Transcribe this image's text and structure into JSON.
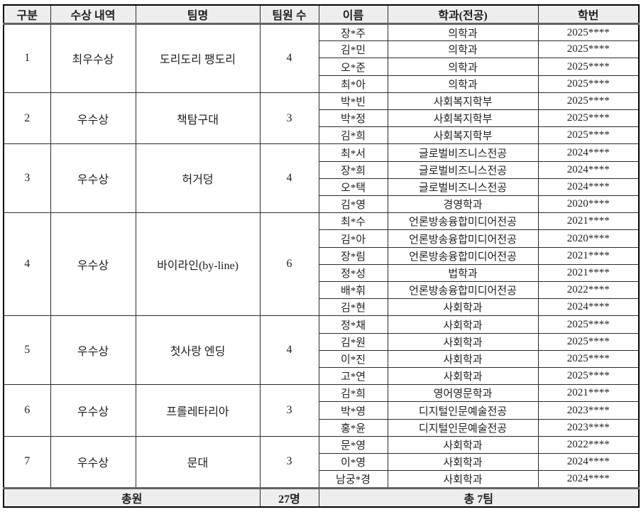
{
  "table": {
    "headers": [
      {
        "label": "구분"
      },
      {
        "label": "수상 내역"
      },
      {
        "label": "팀명"
      },
      {
        "label": "팀원 수"
      },
      {
        "label": "이름"
      },
      {
        "label": "학과(전공)"
      },
      {
        "label": "학번"
      }
    ],
    "teams": [
      {
        "no": "1",
        "award": "최우수상",
        "team_name": "도리도리 팽도리",
        "member_count": "4",
        "members": [
          {
            "name": "장*주",
            "major": "의학과",
            "student_id": "2025****"
          },
          {
            "name": "김*민",
            "major": "의학과",
            "student_id": "2025****"
          },
          {
            "name": "오*준",
            "major": "의학과",
            "student_id": "2025****"
          },
          {
            "name": "최*아",
            "major": "의학과",
            "student_id": "2025****"
          }
        ]
      },
      {
        "no": "2",
        "award": "우수상",
        "team_name": "책탐구대",
        "member_count": "3",
        "members": [
          {
            "name": "박*빈",
            "major": "사회복지학부",
            "student_id": "2025****"
          },
          {
            "name": "박*정",
            "major": "사회복지학부",
            "student_id": "2025****"
          },
          {
            "name": "김*희",
            "major": "사회복지학부",
            "student_id": "2025****"
          }
        ]
      },
      {
        "no": "3",
        "award": "우수상",
        "team_name": "허거덩",
        "member_count": "4",
        "members": [
          {
            "name": "최*서",
            "major": "글로벌비즈니스전공",
            "student_id": "2024****"
          },
          {
            "name": "장*희",
            "major": "글로벌비즈니스전공",
            "student_id": "2024****"
          },
          {
            "name": "오*택",
            "major": "글로벌비즈니스전공",
            "student_id": "2024****"
          },
          {
            "name": "김*영",
            "major": "경영학과",
            "student_id": "2020****"
          }
        ]
      },
      {
        "no": "4",
        "award": "우수상",
        "team_name": "바이라인(by-line)",
        "member_count": "6",
        "members": [
          {
            "name": "최*수",
            "major": "언론방송융합미디어전공",
            "student_id": "2021****"
          },
          {
            "name": "김*아",
            "major": "언론방송융합미디어전공",
            "student_id": "2020****"
          },
          {
            "name": "장*림",
            "major": "언론방송융합미디어전공",
            "student_id": "2021****"
          },
          {
            "name": "정*성",
            "major": "법학과",
            "student_id": "2021****"
          },
          {
            "name": "배*휘",
            "major": "언론방송융합미디어전공",
            "student_id": "2022****"
          },
          {
            "name": "김*현",
            "major": "사회학과",
            "student_id": "2024****"
          }
        ]
      },
      {
        "no": "5",
        "award": "우수상",
        "team_name": "첫사랑 엔딩",
        "member_count": "4",
        "members": [
          {
            "name": "정*채",
            "major": "사회학과",
            "student_id": "2025****"
          },
          {
            "name": "김*원",
            "major": "사회학과",
            "student_id": "2025****"
          },
          {
            "name": "이*진",
            "major": "사회학과",
            "student_id": "2025****"
          },
          {
            "name": "고*연",
            "major": "사회학과",
            "student_id": "2025****"
          }
        ]
      },
      {
        "no": "6",
        "award": "우수상",
        "team_name": "프롤레타리아",
        "member_count": "3",
        "members": [
          {
            "name": "김*희",
            "major": "영어영문학과",
            "student_id": "2021****"
          },
          {
            "name": "박*영",
            "major": "디지털인문예술전공",
            "student_id": "2023****"
          },
          {
            "name": "홍*윤",
            "major": "디지털인문예술전공",
            "student_id": "2023****"
          }
        ]
      },
      {
        "no": "7",
        "award": "우수상",
        "team_name": "문대",
        "member_count": "3",
        "members": [
          {
            "name": "문*영",
            "major": "사회학과",
            "student_id": "2022****"
          },
          {
            "name": "이*영",
            "major": "사회학과",
            "student_id": "2024****"
          },
          {
            "name": "남궁*경",
            "major": "사회학과",
            "student_id": "2024****"
          }
        ]
      }
    ],
    "footer": {
      "total_label": "총원",
      "total_members": "27명",
      "total_teams": "총 7팀"
    },
    "colors": {
      "header_bg": "#eeeeee",
      "footer_bg": "#eeeeee",
      "border": "#000000",
      "text": "#1f1f1f"
    }
  }
}
